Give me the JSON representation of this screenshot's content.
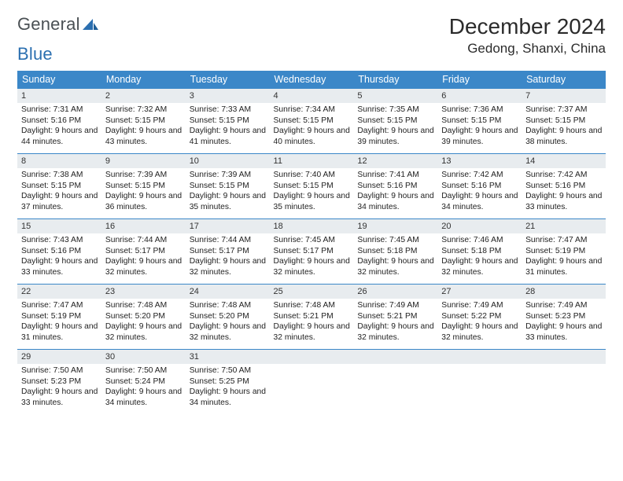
{
  "logo": {
    "text_gray": "General",
    "text_blue": "Blue"
  },
  "title": {
    "month": "December 2024",
    "location": "Gedong, Shanxi, China"
  },
  "colors": {
    "header_blue": "#3b87c8",
    "divider_blue": "#3b87c8",
    "daynum_bg": "#e8ecef",
    "logo_gray": "#4a5054",
    "logo_blue": "#2b6fb0"
  },
  "weekdays": [
    "Sunday",
    "Monday",
    "Tuesday",
    "Wednesday",
    "Thursday",
    "Friday",
    "Saturday"
  ],
  "days": [
    {
      "n": "1",
      "sr": "7:31 AM",
      "ss": "5:16 PM",
      "dl": "9 hours and 44 minutes."
    },
    {
      "n": "2",
      "sr": "7:32 AM",
      "ss": "5:15 PM",
      "dl": "9 hours and 43 minutes."
    },
    {
      "n": "3",
      "sr": "7:33 AM",
      "ss": "5:15 PM",
      "dl": "9 hours and 41 minutes."
    },
    {
      "n": "4",
      "sr": "7:34 AM",
      "ss": "5:15 PM",
      "dl": "9 hours and 40 minutes."
    },
    {
      "n": "5",
      "sr": "7:35 AM",
      "ss": "5:15 PM",
      "dl": "9 hours and 39 minutes."
    },
    {
      "n": "6",
      "sr": "7:36 AM",
      "ss": "5:15 PM",
      "dl": "9 hours and 39 minutes."
    },
    {
      "n": "7",
      "sr": "7:37 AM",
      "ss": "5:15 PM",
      "dl": "9 hours and 38 minutes."
    },
    {
      "n": "8",
      "sr": "7:38 AM",
      "ss": "5:15 PM",
      "dl": "9 hours and 37 minutes."
    },
    {
      "n": "9",
      "sr": "7:39 AM",
      "ss": "5:15 PM",
      "dl": "9 hours and 36 minutes."
    },
    {
      "n": "10",
      "sr": "7:39 AM",
      "ss": "5:15 PM",
      "dl": "9 hours and 35 minutes."
    },
    {
      "n": "11",
      "sr": "7:40 AM",
      "ss": "5:15 PM",
      "dl": "9 hours and 35 minutes."
    },
    {
      "n": "12",
      "sr": "7:41 AM",
      "ss": "5:16 PM",
      "dl": "9 hours and 34 minutes."
    },
    {
      "n": "13",
      "sr": "7:42 AM",
      "ss": "5:16 PM",
      "dl": "9 hours and 34 minutes."
    },
    {
      "n": "14",
      "sr": "7:42 AM",
      "ss": "5:16 PM",
      "dl": "9 hours and 33 minutes."
    },
    {
      "n": "15",
      "sr": "7:43 AM",
      "ss": "5:16 PM",
      "dl": "9 hours and 33 minutes."
    },
    {
      "n": "16",
      "sr": "7:44 AM",
      "ss": "5:17 PM",
      "dl": "9 hours and 32 minutes."
    },
    {
      "n": "17",
      "sr": "7:44 AM",
      "ss": "5:17 PM",
      "dl": "9 hours and 32 minutes."
    },
    {
      "n": "18",
      "sr": "7:45 AM",
      "ss": "5:17 PM",
      "dl": "9 hours and 32 minutes."
    },
    {
      "n": "19",
      "sr": "7:45 AM",
      "ss": "5:18 PM",
      "dl": "9 hours and 32 minutes."
    },
    {
      "n": "20",
      "sr": "7:46 AM",
      "ss": "5:18 PM",
      "dl": "9 hours and 32 minutes."
    },
    {
      "n": "21",
      "sr": "7:47 AM",
      "ss": "5:19 PM",
      "dl": "9 hours and 31 minutes."
    },
    {
      "n": "22",
      "sr": "7:47 AM",
      "ss": "5:19 PM",
      "dl": "9 hours and 31 minutes."
    },
    {
      "n": "23",
      "sr": "7:48 AM",
      "ss": "5:20 PM",
      "dl": "9 hours and 32 minutes."
    },
    {
      "n": "24",
      "sr": "7:48 AM",
      "ss": "5:20 PM",
      "dl": "9 hours and 32 minutes."
    },
    {
      "n": "25",
      "sr": "7:48 AM",
      "ss": "5:21 PM",
      "dl": "9 hours and 32 minutes."
    },
    {
      "n": "26",
      "sr": "7:49 AM",
      "ss": "5:21 PM",
      "dl": "9 hours and 32 minutes."
    },
    {
      "n": "27",
      "sr": "7:49 AM",
      "ss": "5:22 PM",
      "dl": "9 hours and 32 minutes."
    },
    {
      "n": "28",
      "sr": "7:49 AM",
      "ss": "5:23 PM",
      "dl": "9 hours and 33 minutes."
    },
    {
      "n": "29",
      "sr": "7:50 AM",
      "ss": "5:23 PM",
      "dl": "9 hours and 33 minutes."
    },
    {
      "n": "30",
      "sr": "7:50 AM",
      "ss": "5:24 PM",
      "dl": "9 hours and 34 minutes."
    },
    {
      "n": "31",
      "sr": "7:50 AM",
      "ss": "5:25 PM",
      "dl": "9 hours and 34 minutes."
    }
  ],
  "labels": {
    "sunrise": "Sunrise:",
    "sunset": "Sunset:",
    "daylight": "Daylight:"
  },
  "layout": {
    "first_weekday_index": 0,
    "total_cells": 35
  }
}
